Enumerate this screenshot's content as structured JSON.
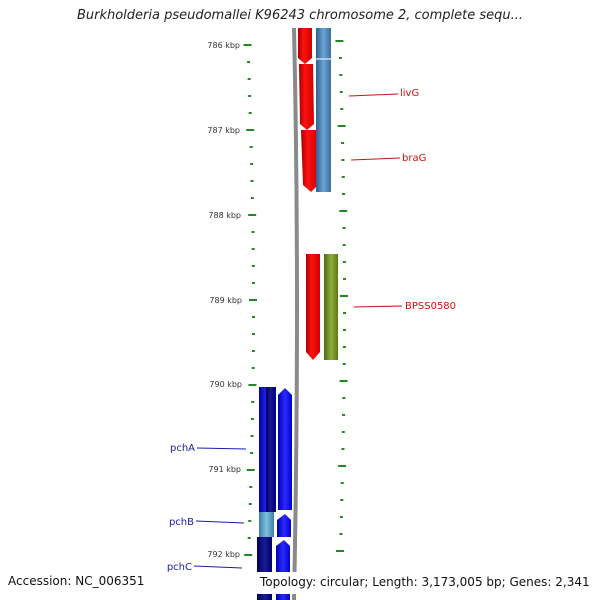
{
  "title": "Burkholderia pseudomallei K96243 chromosome 2, complete sequ...",
  "accession": "Accession: NC_006351",
  "topology": "Topology: circular; Length: 3,173,005 bp; Genes: 2,341",
  "ticks": [
    "786 kbp",
    "787 kbp",
    "788 kbp",
    "789 kbp",
    "790 kbp",
    "791 kbp",
    "792 kbp"
  ],
  "genes_right": [
    "livG",
    "braG",
    "BPSS0580"
  ],
  "genes_left": [
    "pchA",
    "pchB",
    "pchC"
  ],
  "colors": {
    "forward_cds": "#ff0000",
    "reverse_cds": "#0000ff",
    "steelblue_track": "#4a82b8",
    "olive_track": "#6b8e23",
    "navy_track": "#000080",
    "backbone": "#888888",
    "tick_marks": "#228822"
  }
}
